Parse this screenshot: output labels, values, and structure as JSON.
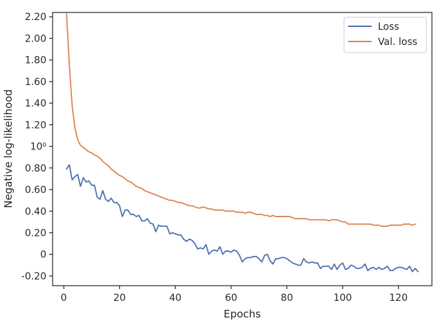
{
  "chart_data": {
    "type": "line",
    "title": "",
    "xlabel": "Epochs",
    "ylabel": "Negative log-likelihood",
    "xlim": [
      -4,
      132
    ],
    "ylim": [
      -0.29,
      2.24
    ],
    "grid": false,
    "legend_position": "top-right",
    "x_ticks": [
      {
        "value": 0,
        "label": "0"
      },
      {
        "value": 20,
        "label": "20"
      },
      {
        "value": 40,
        "label": "40"
      },
      {
        "value": 60,
        "label": "60"
      },
      {
        "value": 80,
        "label": "80"
      },
      {
        "value": 100,
        "label": "100"
      },
      {
        "value": 120,
        "label": "120"
      }
    ],
    "y_ticks": [
      {
        "value": -0.2,
        "label": "-0.20"
      },
      {
        "value": 0,
        "label": "0"
      },
      {
        "value": 0.2,
        "label": "0.20"
      },
      {
        "value": 0.4,
        "label": "0.40"
      },
      {
        "value": 0.6,
        "label": "0.60"
      },
      {
        "value": 0.8,
        "label": "0.80"
      },
      {
        "value": 1.0,
        "label": "10⁰"
      },
      {
        "value": 1.2,
        "label": "1.20"
      },
      {
        "value": 1.4,
        "label": "1.40"
      },
      {
        "value": 1.6,
        "label": "1.60"
      },
      {
        "value": 1.8,
        "label": "1.80"
      },
      {
        "value": 2.0,
        "label": "2.00"
      },
      {
        "value": 2.2,
        "label": "2.20"
      }
    ],
    "series": [
      {
        "name": "Loss",
        "color": "#4c72b0",
        "x_start": 1,
        "values": [
          0.79,
          0.83,
          0.69,
          0.72,
          0.74,
          0.63,
          0.71,
          0.67,
          0.68,
          0.64,
          0.64,
          0.53,
          0.51,
          0.59,
          0.51,
          0.49,
          0.52,
          0.48,
          0.48,
          0.45,
          0.35,
          0.41,
          0.41,
          0.37,
          0.37,
          0.35,
          0.36,
          0.31,
          0.31,
          0.33,
          0.29,
          0.28,
          0.21,
          0.27,
          0.26,
          0.26,
          0.26,
          0.19,
          0.2,
          0.19,
          0.18,
          0.18,
          0.14,
          0.12,
          0.14,
          0.13,
          0.1,
          0.05,
          0.06,
          0.05,
          0.09,
          0.0,
          0.03,
          0.04,
          0.03,
          0.07,
          0.0,
          0.03,
          0.03,
          0.02,
          0.04,
          0.03,
          -0.01,
          -0.07,
          -0.04,
          -0.03,
          -0.03,
          -0.02,
          -0.02,
          -0.04,
          -0.07,
          -0.01,
          0.0,
          -0.06,
          -0.09,
          -0.04,
          -0.04,
          -0.03,
          -0.03,
          -0.04,
          -0.06,
          -0.08,
          -0.09,
          -0.1,
          -0.1,
          -0.04,
          -0.07,
          -0.08,
          -0.07,
          -0.08,
          -0.08,
          -0.13,
          -0.11,
          -0.11,
          -0.11,
          -0.14,
          -0.09,
          -0.14,
          -0.1,
          -0.08,
          -0.14,
          -0.13,
          -0.1,
          -0.11,
          -0.13,
          -0.13,
          -0.12,
          -0.09,
          -0.15,
          -0.13,
          -0.12,
          -0.14,
          -0.12,
          -0.14,
          -0.13,
          -0.11,
          -0.15,
          -0.15,
          -0.13,
          -0.12,
          -0.12,
          -0.13,
          -0.14,
          -0.11,
          -0.16,
          -0.13,
          -0.16
        ]
      },
      {
        "name": "Val. loss",
        "color": "#dd8452",
        "x_start": 1,
        "values": [
          2.23,
          1.75,
          1.38,
          1.17,
          1.06,
          1.01,
          0.99,
          0.97,
          0.95,
          0.94,
          0.92,
          0.91,
          0.89,
          0.86,
          0.84,
          0.82,
          0.79,
          0.77,
          0.75,
          0.73,
          0.72,
          0.7,
          0.68,
          0.67,
          0.65,
          0.63,
          0.62,
          0.61,
          0.59,
          0.58,
          0.57,
          0.56,
          0.55,
          0.54,
          0.53,
          0.52,
          0.51,
          0.5,
          0.5,
          0.49,
          0.48,
          0.48,
          0.47,
          0.46,
          0.45,
          0.45,
          0.44,
          0.43,
          0.43,
          0.44,
          0.43,
          0.42,
          0.42,
          0.41,
          0.41,
          0.41,
          0.41,
          0.4,
          0.4,
          0.4,
          0.4,
          0.39,
          0.39,
          0.39,
          0.38,
          0.39,
          0.39,
          0.38,
          0.37,
          0.37,
          0.37,
          0.36,
          0.36,
          0.35,
          0.36,
          0.35,
          0.35,
          0.35,
          0.35,
          0.35,
          0.35,
          0.34,
          0.33,
          0.33,
          0.33,
          0.33,
          0.33,
          0.32,
          0.32,
          0.32,
          0.32,
          0.32,
          0.32,
          0.32,
          0.31,
          0.32,
          0.32,
          0.32,
          0.31,
          0.3,
          0.3,
          0.28,
          0.28,
          0.28,
          0.28,
          0.28,
          0.28,
          0.28,
          0.28,
          0.28,
          0.27,
          0.27,
          0.27,
          0.26,
          0.26,
          0.26,
          0.27,
          0.27,
          0.27,
          0.27,
          0.27,
          0.28,
          0.28,
          0.28,
          0.27,
          0.28
        ]
      }
    ]
  }
}
